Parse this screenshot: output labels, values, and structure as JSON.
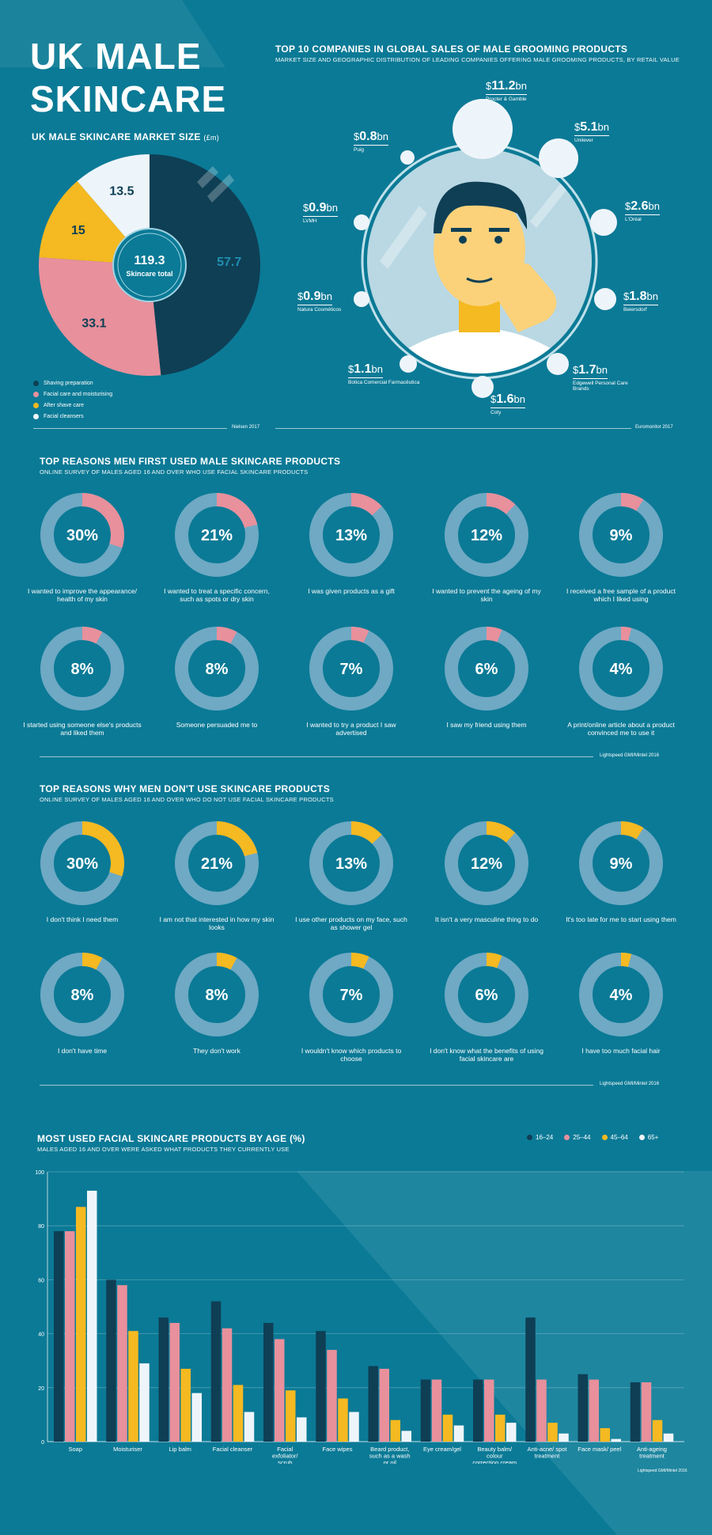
{
  "title": {
    "line1": "UK MALE",
    "line2": "SKINCARE"
  },
  "market": {
    "heading": "UK MALE SKINCARE MARKET SIZE",
    "unit": "(£m)",
    "center_value": "119.3",
    "center_label": "Skincare total",
    "source": "Nielsen 2017",
    "colors": {
      "shaving": "#0e3f55",
      "facial_care": "#e8909c",
      "after_shave": "#f5b921",
      "cleansers": "#eef5fa"
    }
  },
  "companies": {
    "heading": "TOP 10 COMPANIES IN GLOBAL SALES OF MALE GROOMING PRODUCTS",
    "subheading": "MARKET SIZE AND GEOGRAPHIC DISTRIBUTION OF LEADING COMPANIES OFFERING MALE GROOMING PRODUCTS, BY RETAIL VALUE",
    "source": "Euromonitor 2017",
    "items": [
      {
        "currency": "$",
        "amount": "11.2",
        "unit": "bn",
        "name": "Procter & Gamble"
      },
      {
        "currency": "$",
        "amount": "5.1",
        "unit": "bn",
        "name": "Unilever"
      },
      {
        "currency": "$",
        "amount": "2.6",
        "unit": "bn",
        "name": "L'Oréal"
      },
      {
        "currency": "$",
        "amount": "1.8",
        "unit": "bn",
        "name": "Beiersdorf"
      },
      {
        "currency": "$",
        "amount": "1.7",
        "unit": "bn",
        "name": "Edgewell Personal Care Brands"
      },
      {
        "currency": "$",
        "amount": "1.6",
        "unit": "bn",
        "name": "Coty"
      },
      {
        "currency": "$",
        "amount": "1.1",
        "unit": "bn",
        "name": "Botica Comercial Farmacêutica"
      },
      {
        "currency": "$",
        "amount": "0.9",
        "unit": "bn",
        "name": "Natura Cosméticos"
      },
      {
        "currency": "$",
        "amount": "0.9",
        "unit": "bn",
        "name": "LVMH"
      },
      {
        "currency": "$",
        "amount": "0.8",
        "unit": "bn",
        "name": "Puig"
      }
    ]
  },
  "reasons_used": {
    "heading": "TOP REASONS MEN FIRST USED MALE SKINCARE PRODUCTS",
    "subheading": "ONLINE SURVEY OF MALES AGED 16 AND OVER WHO USE FACIAL SKINCARE PRODUCTS",
    "source": "Lightspeed GMI/Mintel 2016",
    "accent": "#e8909c",
    "items": [
      {
        "value": 30,
        "pct_label": "30%",
        "label": "I wanted to improve the appearance/ health of my skin"
      },
      {
        "value": 21,
        "pct_label": "21%",
        "label": "I wanted to treat a specific concern, such as spots or dry skin"
      },
      {
        "value": 13,
        "pct_label": "13%",
        "label": "I was given products as a gift"
      },
      {
        "value": 12,
        "pct_label": "12%",
        "label": "I wanted to prevent the ageing of my skin"
      },
      {
        "value": 9,
        "pct_label": "9%",
        "label": "I received a free sample of a product which I liked using"
      },
      {
        "value": 8,
        "pct_label": "8%",
        "label": "I started using someone else's products and liked them"
      },
      {
        "value": 8,
        "pct_label": "8%",
        "label": "Someone persuaded me to"
      },
      {
        "value": 7,
        "pct_label": "7%",
        "label": "I wanted to try a product I saw advertised"
      },
      {
        "value": 6,
        "pct_label": "6%",
        "label": "I saw my friend using them"
      },
      {
        "value": 4,
        "pct_label": "4%",
        "label": "A print/online article about a product convinced me to use it"
      }
    ]
  },
  "reasons_not": {
    "heading": "TOP REASONS WHY MEN DON'T USE SKINCARE PRODUCTS",
    "subheading": "ONLINE SURVEY OF MALES AGED 16 AND OVER WHO DO NOT USE FACIAL SKINCARE PRODUCTS",
    "source": "Lightspeed GMI/Mintel 2016",
    "accent": "#f5b921",
    "items": [
      {
        "value": 30,
        "pct_label": "30%",
        "label": "I don't think I need them"
      },
      {
        "value": 21,
        "pct_label": "21%",
        "label": "I am not that interested in how my skin looks"
      },
      {
        "value": 13,
        "pct_label": "13%",
        "label": "I use other products on my face, such as shower gel"
      },
      {
        "value": 12,
        "pct_label": "12%",
        "label": "It isn't a very masculine thing to do"
      },
      {
        "value": 9,
        "pct_label": "9%",
        "label": "It's too late for me to start using them"
      },
      {
        "value": 8,
        "pct_label": "8%",
        "label": "I don't have time"
      },
      {
        "value": 8,
        "pct_label": "8%",
        "label": "They don't work"
      },
      {
        "value": 7,
        "pct_label": "7%",
        "label": "I wouldn't know which products to choose"
      },
      {
        "value": 6,
        "pct_label": "6%",
        "label": "I don't know what the benefits of using facial skincare are"
      },
      {
        "value": 4,
        "pct_label": "4%",
        "label": "I have too much facial hair"
      }
    ]
  },
  "products": {
    "heading": "MOST USED FACIAL SKINCARE PRODUCTS BY AGE (%)",
    "subheading": "MALES AGED 16 AND OVER WERE ASKED WHAT PRODUCTS THEY CURRENTLY USE",
    "source": "Lightspeed GMI/Mintel 2016",
    "legend": [
      "16–24",
      "25–44",
      "45–64",
      "65+"
    ]
  },
  "chart_data": [
    {
      "type": "pie",
      "title": "UK MALE SKINCARE MARKET SIZE (£m)",
      "categories": [
        "Shaving preparation",
        "Facial care and moisturising",
        "After shave care",
        "Facial cleansers"
      ],
      "values": [
        57.7,
        33.1,
        15,
        13.5
      ],
      "total": 119.3
    },
    {
      "type": "bar",
      "title": "MOST USED FACIAL SKINCARE PRODUCTS BY AGE (%)",
      "categories": [
        "Soap",
        "Moisturiser",
        "Lip balm",
        "Facial cleanser",
        "Facial exfoliator/ scrub",
        "Face wipes",
        "Beard product, such as a wash or oil",
        "Eye cream/gel",
        "Beauty balm/ colour correction cream",
        "Anti-acne/ spot treatment",
        "Face mask/ peel",
        "Anti-ageing treatment"
      ],
      "series": [
        {
          "name": "16–24",
          "color": "#0e3f55",
          "values": [
            78,
            60,
            46,
            52,
            44,
            41,
            28,
            23,
            23,
            46,
            25,
            22
          ]
        },
        {
          "name": "25–44",
          "color": "#e8909c",
          "values": [
            78,
            58,
            44,
            42,
            38,
            34,
            27,
            23,
            23,
            23,
            23,
            22
          ]
        },
        {
          "name": "45–64",
          "color": "#f5b921",
          "values": [
            87,
            41,
            27,
            21,
            19,
            16,
            8,
            10,
            10,
            7,
            5,
            8
          ]
        },
        {
          "name": "65+",
          "color": "#eef5fa",
          "values": [
            93,
            29,
            18,
            11,
            9,
            11,
            4,
            6,
            7,
            3,
            1,
            3
          ]
        }
      ],
      "yticks": [
        "0",
        "20",
        "40",
        "60",
        "80",
        "100"
      ],
      "ylim": [
        0,
        100
      ],
      "xlabel": "",
      "ylabel": ""
    }
  ]
}
